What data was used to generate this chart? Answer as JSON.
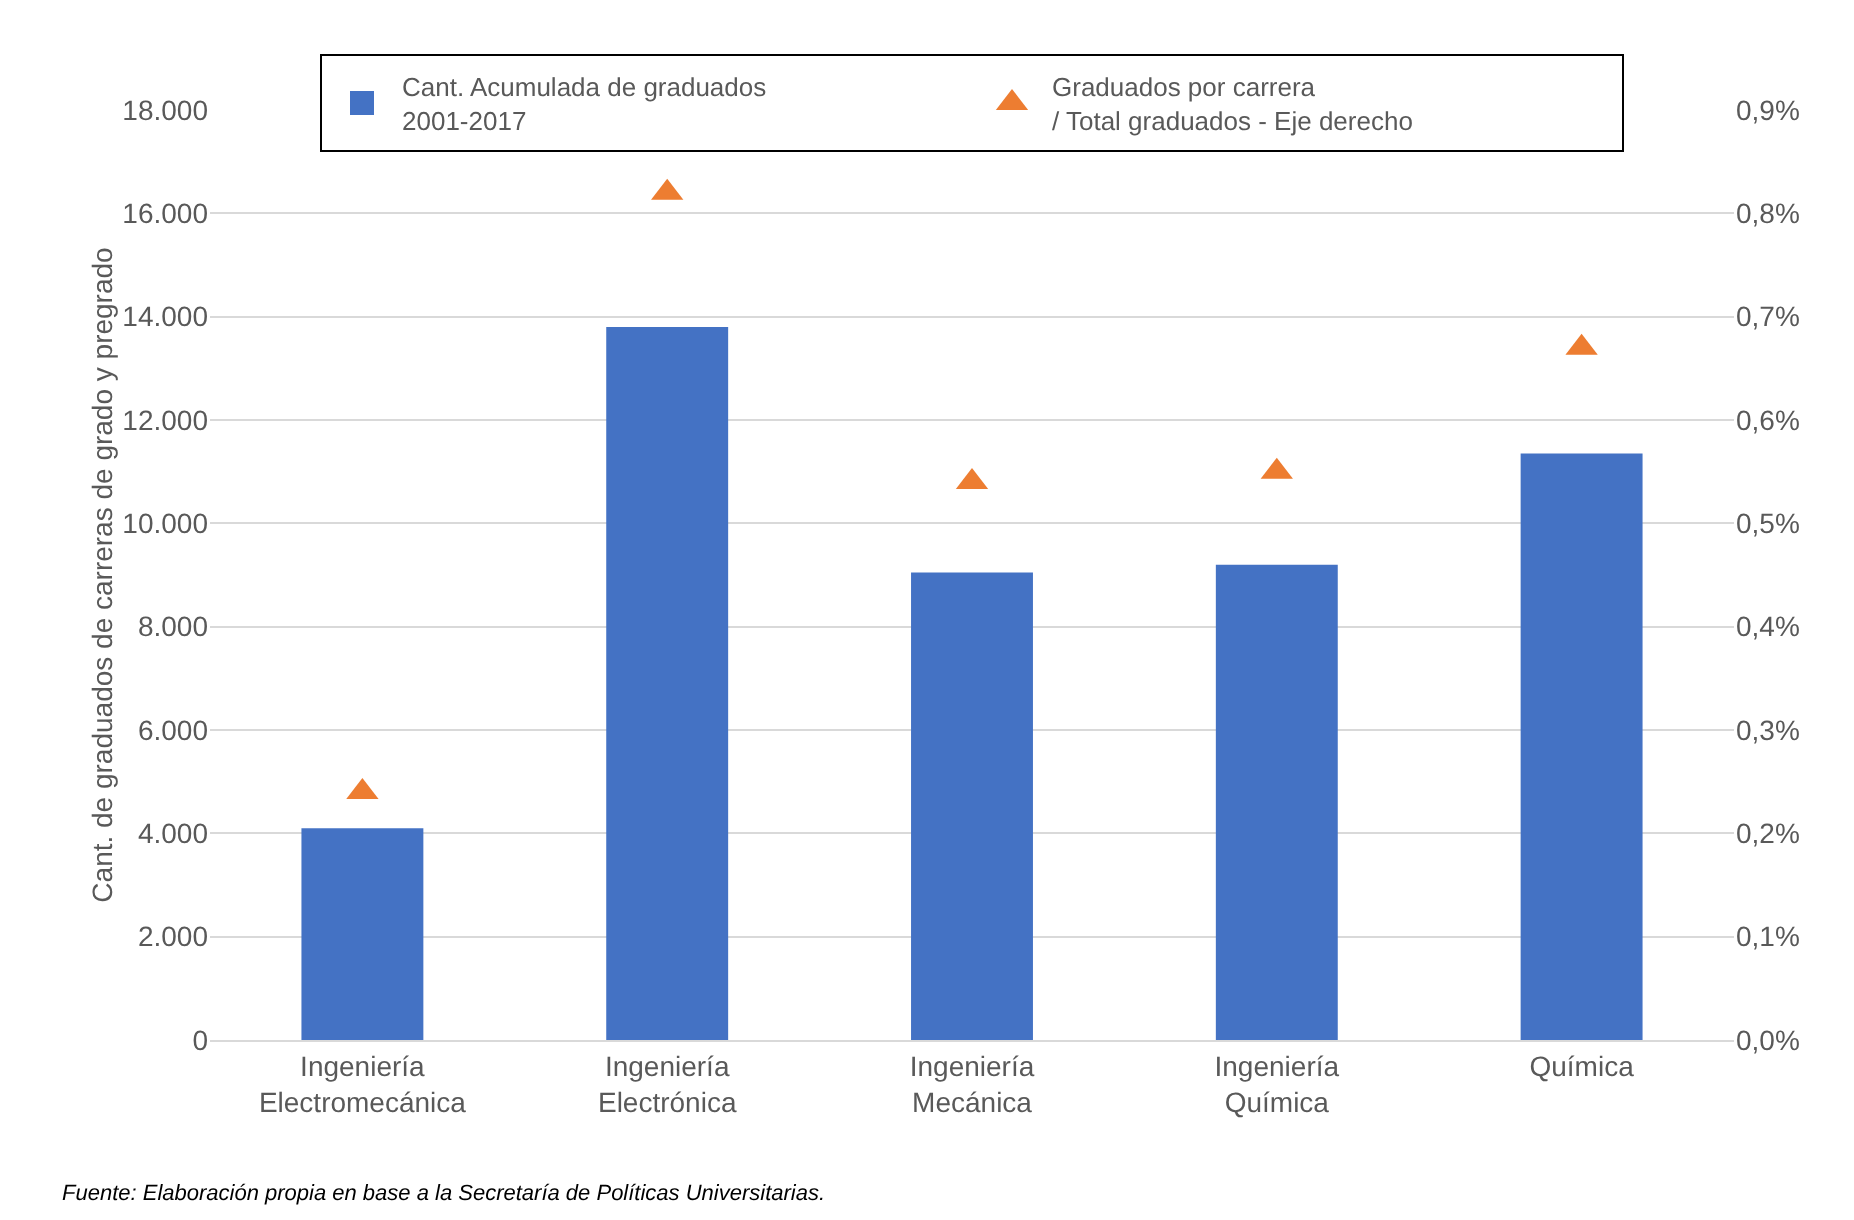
{
  "chart_data": {
    "type": "bar",
    "categories": [
      "Ingeniería Electromecánica",
      "Ingeniería Electrónica",
      "Ingeniería Mecánica",
      "Ingeniería Química",
      "Química"
    ],
    "series": [
      {
        "name": "Cant. Acumulada de graduados\n2001-2017",
        "color": "#4472c4",
        "values": [
          4100,
          13800,
          9050,
          9200,
          11350
        ]
      },
      {
        "name": "Graduados por carrera\n/ Total graduados - Eje derecho",
        "type": "scatter",
        "axis": "y2",
        "marker": "triangle",
        "color": "#ed7d31",
        "values": [
          0.24,
          0.82,
          0.54,
          0.55,
          0.67
        ]
      }
    ],
    "ylabel": "Cant. de graduados de carreras de grado y pregrado",
    "ylim": [
      0,
      18000
    ],
    "yticks": [
      0,
      {
        "value": 2000,
        "label": "2.000"
      },
      {
        "value": 4000,
        "label": "4.000"
      },
      {
        "value": 6000,
        "label": "6.000"
      },
      {
        "value": 8000,
        "label": "8.000"
      },
      {
        "value": 10000,
        "label": "10.000"
      },
      {
        "value": 12000,
        "label": "12.000"
      },
      {
        "value": 14000,
        "label": "14.000"
      },
      {
        "value": 16000,
        "label": "16.000"
      },
      {
        "value": 18000,
        "label": "18.000"
      }
    ],
    "y2lim": [
      0,
      0.9
    ],
    "y2ticks": [
      {
        "value": 0,
        "label": "0,0%"
      },
      {
        "value": 0.1,
        "label": "0,1%"
      },
      {
        "value": 0.2,
        "label": "0,2%"
      },
      {
        "value": 0.3,
        "label": "0,3%"
      },
      {
        "value": 0.4,
        "label": "0,4%"
      },
      {
        "value": 0.5,
        "label": "0,5%"
      },
      {
        "value": 0.6,
        "label": "0,6%"
      },
      {
        "value": 0.7,
        "label": "0,7%"
      },
      {
        "value": 0.8,
        "label": "0,8%"
      },
      {
        "value": 0.9,
        "label": "0,9%"
      }
    ],
    "grid": "y",
    "legend": "top",
    "annotations": [
      "Fuente: Elaboración propia en base a la Secretaría de Políticas Universitarias."
    ]
  }
}
